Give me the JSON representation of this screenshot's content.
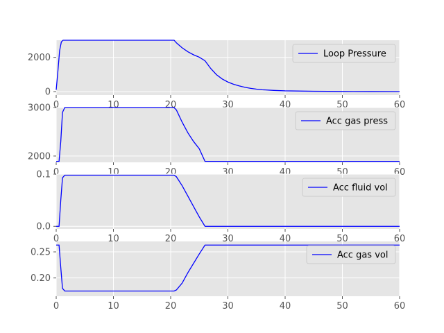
{
  "chart_data": [
    {
      "type": "line",
      "xlim": [
        0,
        60
      ],
      "ylim": [
        -200,
        3000
      ],
      "xticks": [
        0,
        10,
        20,
        30,
        40,
        50,
        60
      ],
      "yticks": [
        0,
        2000
      ],
      "grid": true,
      "legend_position": "upper-right",
      "series": [
        {
          "name": "Loop Pressure",
          "color": "#0000ff",
          "points": [
            [
              0,
              100
            ],
            [
              0.3,
              1200
            ],
            [
              0.6,
              2400
            ],
            [
              0.9,
              2900
            ],
            [
              1.2,
              3000
            ],
            [
              20.6,
              3000
            ],
            [
              21,
              2850
            ],
            [
              22,
              2560
            ],
            [
              23,
              2330
            ],
            [
              24,
              2150
            ],
            [
              25,
              2010
            ],
            [
              26,
              1800
            ],
            [
              27,
              1350
            ],
            [
              28,
              990
            ],
            [
              29,
              740
            ],
            [
              30,
              560
            ],
            [
              31,
              430
            ],
            [
              32,
              330
            ],
            [
              33,
              250
            ],
            [
              34,
              190
            ],
            [
              35,
              145
            ],
            [
              36,
              110
            ],
            [
              38,
              70
            ],
            [
              40,
              45
            ],
            [
              45,
              20
            ],
            [
              50,
              10
            ],
            [
              55,
              5
            ],
            [
              60,
              3
            ]
          ]
        }
      ]
    },
    {
      "type": "line",
      "xlim": [
        0,
        60
      ],
      "ylim": [
        1870,
        3000
      ],
      "xticks": [
        0,
        10,
        20,
        30,
        40,
        50,
        60
      ],
      "yticks": [
        2000,
        3000
      ],
      "grid": true,
      "legend_position": "upper-right",
      "series": [
        {
          "name": "Acc gas press",
          "color": "#0000ff",
          "points": [
            [
              0,
              1890
            ],
            [
              0.5,
              1890
            ],
            [
              0.8,
              2300
            ],
            [
              1.1,
              2900
            ],
            [
              1.5,
              3000
            ],
            [
              20.6,
              3000
            ],
            [
              21,
              2950
            ],
            [
              22,
              2700
            ],
            [
              23,
              2480
            ],
            [
              24,
              2300
            ],
            [
              25,
              2150
            ],
            [
              26,
              1890
            ],
            [
              60,
              1890
            ]
          ]
        }
      ]
    },
    {
      "type": "line",
      "xlim": [
        0,
        60
      ],
      "ylim": [
        -0.005,
        0.1
      ],
      "xticks": [
        0,
        10,
        20,
        30,
        40,
        50,
        60
      ],
      "yticks": [
        0.0,
        0.1
      ],
      "ytick_labels": [
        "0.0",
        "0.1"
      ],
      "grid": true,
      "legend_position": "upper-right",
      "series": [
        {
          "name": "Acc fluid vol",
          "color": "#0000ff",
          "points": [
            [
              0,
              0
            ],
            [
              0.5,
              0
            ],
            [
              0.8,
              0.05
            ],
            [
              1.1,
              0.093
            ],
            [
              1.5,
              0.098
            ],
            [
              20.6,
              0.098
            ],
            [
              21,
              0.095
            ],
            [
              22,
              0.078
            ],
            [
              23,
              0.058
            ],
            [
              24,
              0.038
            ],
            [
              25,
              0.018
            ],
            [
              26,
              0
            ],
            [
              60,
              0
            ]
          ]
        }
      ]
    },
    {
      "type": "line",
      "xlim": [
        0,
        60
      ],
      "ylim": [
        0.165,
        0.27
      ],
      "xticks": [
        0,
        10,
        20,
        30,
        40,
        50,
        60
      ],
      "yticks": [
        0.2,
        0.25
      ],
      "ytick_labels": [
        "0.20",
        "0.25"
      ],
      "grid": true,
      "legend_position": "upper-right",
      "series": [
        {
          "name": "Acc gas vol",
          "color": "#0000ff",
          "points": [
            [
              0,
              0.263
            ],
            [
              0.5,
              0.263
            ],
            [
              0.8,
              0.22
            ],
            [
              1.1,
              0.18
            ],
            [
              1.5,
              0.175
            ],
            [
              20.6,
              0.175
            ],
            [
              21,
              0.177
            ],
            [
              22,
              0.19
            ],
            [
              23,
              0.21
            ],
            [
              24,
              0.228
            ],
            [
              25,
              0.246
            ],
            [
              26,
              0.263
            ],
            [
              60,
              0.263
            ]
          ]
        }
      ]
    }
  ]
}
